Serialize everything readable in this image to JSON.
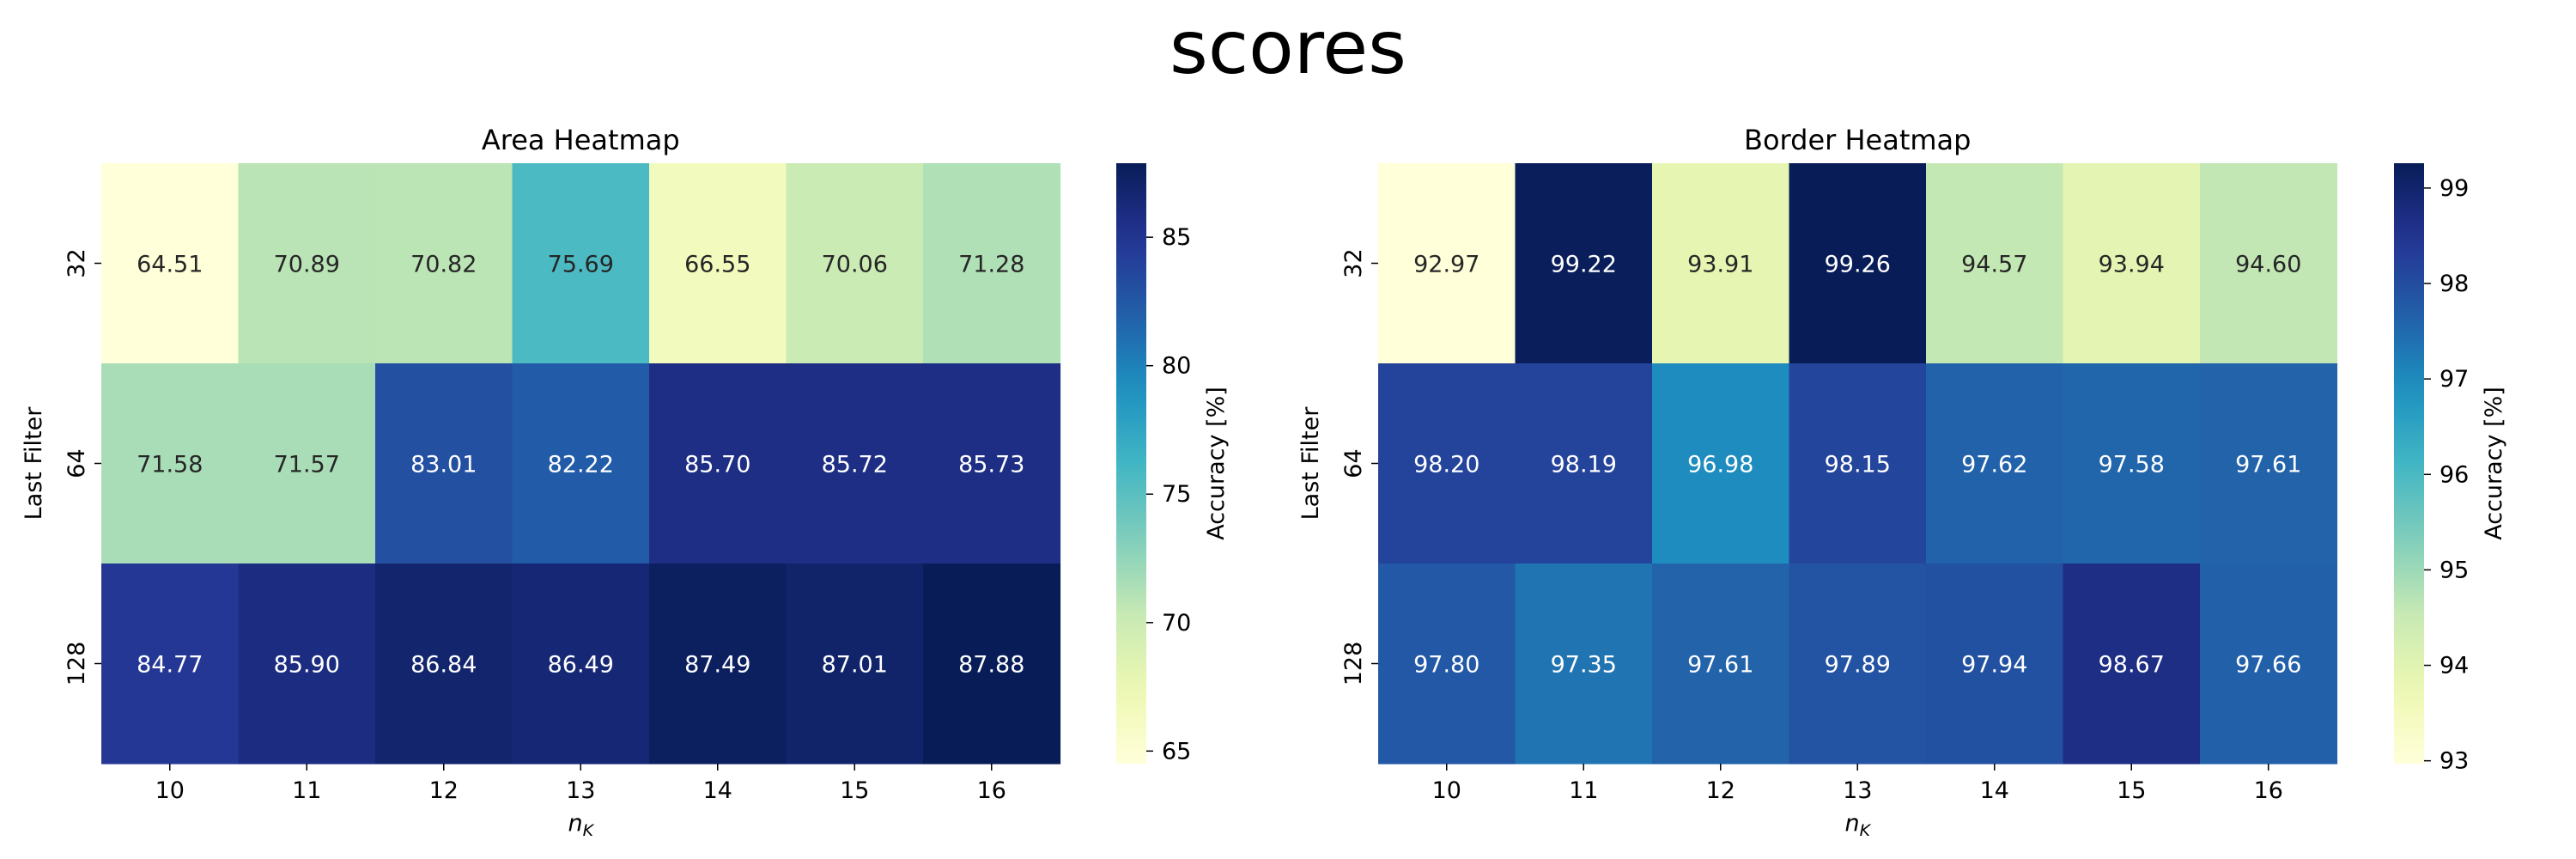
{
  "figure": {
    "title": "scores"
  },
  "chart_data": [
    {
      "type": "heatmap",
      "title": "Area Heatmap",
      "xlabel": "n",
      "xlabel_sub": "K",
      "ylabel": "Last Filter",
      "x": [
        "10",
        "11",
        "12",
        "13",
        "14",
        "15",
        "16"
      ],
      "y": [
        "32",
        "64",
        "128"
      ],
      "values": [
        [
          64.51,
          70.89,
          70.82,
          75.69,
          66.55,
          70.06,
          71.28
        ],
        [
          71.58,
          71.57,
          83.01,
          82.22,
          85.7,
          85.72,
          85.73
        ],
        [
          84.77,
          85.9,
          86.84,
          86.49,
          87.49,
          87.01,
          87.88
        ]
      ],
      "colormap": "YlGnBu",
      "colorbar": {
        "label": "Accuracy [%]",
        "min": 64.51,
        "max": 87.88,
        "ticks": [
          65,
          70,
          75,
          80,
          85
        ]
      }
    },
    {
      "type": "heatmap",
      "title": "Border Heatmap",
      "xlabel": "n",
      "xlabel_sub": "K",
      "ylabel": "Last Filter",
      "x": [
        "10",
        "11",
        "12",
        "13",
        "14",
        "15",
        "16"
      ],
      "y": [
        "32",
        "64",
        "128"
      ],
      "values": [
        [
          92.97,
          99.22,
          93.91,
          99.26,
          94.57,
          93.94,
          94.6
        ],
        [
          98.2,
          98.19,
          96.98,
          98.15,
          97.62,
          97.58,
          97.61
        ],
        [
          97.8,
          97.35,
          97.61,
          97.89,
          97.94,
          98.67,
          97.66
        ]
      ],
      "colormap": "YlGnBu",
      "colorbar": {
        "label": "Accuracy [%]",
        "min": 92.97,
        "max": 99.26,
        "ticks": [
          93,
          94,
          95,
          96,
          97,
          98,
          99
        ]
      }
    }
  ]
}
